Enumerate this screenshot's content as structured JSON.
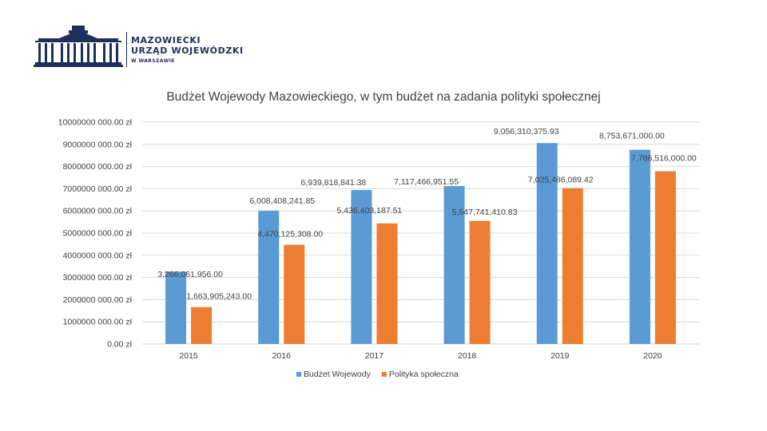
{
  "header": {
    "org_line1": "MAZOWIECKI",
    "org_line2": "URZĄD WOJEWÓDZKI",
    "org_line3": "W WARSZAWIE",
    "logo_icon": "building-icon"
  },
  "colors": {
    "series1": "#5B9BD5",
    "series2": "#ED7D31",
    "grid": "#D9D9D9",
    "text": "#404040",
    "brand": "#1f2f5c"
  },
  "chart_data": {
    "type": "bar",
    "title": "Budżet Wojewody Mazowieckiego, w tym budżet na zadania polityki społecznej",
    "xlabel": "",
    "ylabel": "",
    "ylim": [
      0,
      10000000000
    ],
    "grid": true,
    "legend_position": "bottom",
    "categories": [
      "2015",
      "2016",
      "2017",
      "2018",
      "2019",
      "2020"
    ],
    "y_tick_labels": [
      "0.00 zł",
      "1000000 000.00 zł",
      "2000000 000.00 zł",
      "3000000 000.00 zł",
      "4000000 000.00 zł",
      "5000000 000.00 zł",
      "6000000 000.00 zł",
      "7000000 000.00 zł",
      "8000000 000.00 zł",
      "9000000 000.00 zł",
      "10000000 000.00 zł"
    ],
    "series": [
      {
        "name": "Budżet Wojewody",
        "values": [
          3266061956.0,
          6008408241.85,
          6939818841.38,
          7117466951.55,
          9056310375.93,
          8753671000.0
        ],
        "labels": [
          "3,266,061,956.00",
          "6,008,408,241.85",
          "6,939,818,841.38",
          "7,117,466,951.55",
          "9,056,310,375.93",
          "8,753,671,000.00"
        ]
      },
      {
        "name": "Polityka społeczna",
        "values": [
          1663905243.0,
          4470125308.0,
          5436403187.51,
          5547741410.83,
          7025486089.42,
          7786516000.0
        ],
        "labels": [
          "1,663,905,243.00",
          "4,470,125,308.00",
          "5,436,403,187.51",
          "5,547,741,410.83",
          "7,025,486,089.42",
          "7,786,516,000.00"
        ]
      }
    ]
  }
}
